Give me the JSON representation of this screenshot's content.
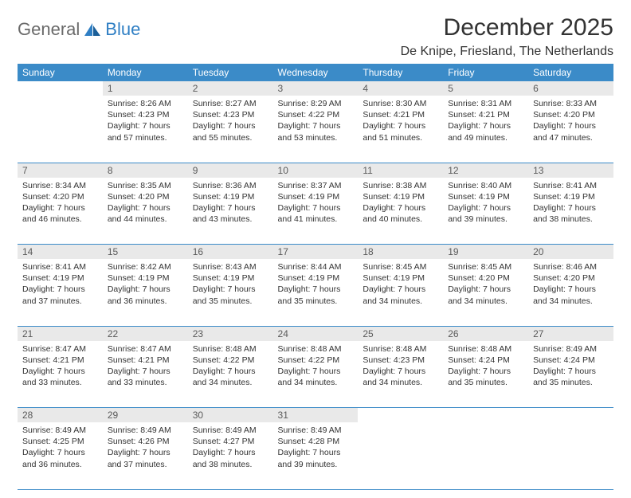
{
  "brand": {
    "part1": "General",
    "part2": "Blue"
  },
  "title": "December 2025",
  "location": "De Knipe, Friesland, The Netherlands",
  "colors": {
    "header_bg": "#3b8bc8",
    "header_text": "#ffffff",
    "daynum_bg": "#e9e9e9",
    "daynum_text": "#5a5a5a",
    "row_border": "#3b8bc8",
    "logo_gray": "#6a6a6a",
    "logo_blue": "#2f7fc4",
    "body_text": "#333333",
    "background": "#ffffff"
  },
  "typography": {
    "title_fontsize": 30,
    "location_fontsize": 16,
    "weekday_fontsize": 12,
    "cell_fontsize": 10.5
  },
  "weekdays": [
    "Sunday",
    "Monday",
    "Tuesday",
    "Wednesday",
    "Thursday",
    "Friday",
    "Saturday"
  ],
  "weeks": [
    {
      "days": [
        {
          "n": "",
          "sunrise": "",
          "sunset": "",
          "daylight": ""
        },
        {
          "n": "1",
          "sunrise": "Sunrise: 8:26 AM",
          "sunset": "Sunset: 4:23 PM",
          "daylight": "Daylight: 7 hours and 57 minutes."
        },
        {
          "n": "2",
          "sunrise": "Sunrise: 8:27 AM",
          "sunset": "Sunset: 4:23 PM",
          "daylight": "Daylight: 7 hours and 55 minutes."
        },
        {
          "n": "3",
          "sunrise": "Sunrise: 8:29 AM",
          "sunset": "Sunset: 4:22 PM",
          "daylight": "Daylight: 7 hours and 53 minutes."
        },
        {
          "n": "4",
          "sunrise": "Sunrise: 8:30 AM",
          "sunset": "Sunset: 4:21 PM",
          "daylight": "Daylight: 7 hours and 51 minutes."
        },
        {
          "n": "5",
          "sunrise": "Sunrise: 8:31 AM",
          "sunset": "Sunset: 4:21 PM",
          "daylight": "Daylight: 7 hours and 49 minutes."
        },
        {
          "n": "6",
          "sunrise": "Sunrise: 8:33 AM",
          "sunset": "Sunset: 4:20 PM",
          "daylight": "Daylight: 7 hours and 47 minutes."
        }
      ]
    },
    {
      "days": [
        {
          "n": "7",
          "sunrise": "Sunrise: 8:34 AM",
          "sunset": "Sunset: 4:20 PM",
          "daylight": "Daylight: 7 hours and 46 minutes."
        },
        {
          "n": "8",
          "sunrise": "Sunrise: 8:35 AM",
          "sunset": "Sunset: 4:20 PM",
          "daylight": "Daylight: 7 hours and 44 minutes."
        },
        {
          "n": "9",
          "sunrise": "Sunrise: 8:36 AM",
          "sunset": "Sunset: 4:19 PM",
          "daylight": "Daylight: 7 hours and 43 minutes."
        },
        {
          "n": "10",
          "sunrise": "Sunrise: 8:37 AM",
          "sunset": "Sunset: 4:19 PM",
          "daylight": "Daylight: 7 hours and 41 minutes."
        },
        {
          "n": "11",
          "sunrise": "Sunrise: 8:38 AM",
          "sunset": "Sunset: 4:19 PM",
          "daylight": "Daylight: 7 hours and 40 minutes."
        },
        {
          "n": "12",
          "sunrise": "Sunrise: 8:40 AM",
          "sunset": "Sunset: 4:19 PM",
          "daylight": "Daylight: 7 hours and 39 minutes."
        },
        {
          "n": "13",
          "sunrise": "Sunrise: 8:41 AM",
          "sunset": "Sunset: 4:19 PM",
          "daylight": "Daylight: 7 hours and 38 minutes."
        }
      ]
    },
    {
      "days": [
        {
          "n": "14",
          "sunrise": "Sunrise: 8:41 AM",
          "sunset": "Sunset: 4:19 PM",
          "daylight": "Daylight: 7 hours and 37 minutes."
        },
        {
          "n": "15",
          "sunrise": "Sunrise: 8:42 AM",
          "sunset": "Sunset: 4:19 PM",
          "daylight": "Daylight: 7 hours and 36 minutes."
        },
        {
          "n": "16",
          "sunrise": "Sunrise: 8:43 AM",
          "sunset": "Sunset: 4:19 PM",
          "daylight": "Daylight: 7 hours and 35 minutes."
        },
        {
          "n": "17",
          "sunrise": "Sunrise: 8:44 AM",
          "sunset": "Sunset: 4:19 PM",
          "daylight": "Daylight: 7 hours and 35 minutes."
        },
        {
          "n": "18",
          "sunrise": "Sunrise: 8:45 AM",
          "sunset": "Sunset: 4:19 PM",
          "daylight": "Daylight: 7 hours and 34 minutes."
        },
        {
          "n": "19",
          "sunrise": "Sunrise: 8:45 AM",
          "sunset": "Sunset: 4:20 PM",
          "daylight": "Daylight: 7 hours and 34 minutes."
        },
        {
          "n": "20",
          "sunrise": "Sunrise: 8:46 AM",
          "sunset": "Sunset: 4:20 PM",
          "daylight": "Daylight: 7 hours and 34 minutes."
        }
      ]
    },
    {
      "days": [
        {
          "n": "21",
          "sunrise": "Sunrise: 8:47 AM",
          "sunset": "Sunset: 4:21 PM",
          "daylight": "Daylight: 7 hours and 33 minutes."
        },
        {
          "n": "22",
          "sunrise": "Sunrise: 8:47 AM",
          "sunset": "Sunset: 4:21 PM",
          "daylight": "Daylight: 7 hours and 33 minutes."
        },
        {
          "n": "23",
          "sunrise": "Sunrise: 8:48 AM",
          "sunset": "Sunset: 4:22 PM",
          "daylight": "Daylight: 7 hours and 34 minutes."
        },
        {
          "n": "24",
          "sunrise": "Sunrise: 8:48 AM",
          "sunset": "Sunset: 4:22 PM",
          "daylight": "Daylight: 7 hours and 34 minutes."
        },
        {
          "n": "25",
          "sunrise": "Sunrise: 8:48 AM",
          "sunset": "Sunset: 4:23 PM",
          "daylight": "Daylight: 7 hours and 34 minutes."
        },
        {
          "n": "26",
          "sunrise": "Sunrise: 8:48 AM",
          "sunset": "Sunset: 4:24 PM",
          "daylight": "Daylight: 7 hours and 35 minutes."
        },
        {
          "n": "27",
          "sunrise": "Sunrise: 8:49 AM",
          "sunset": "Sunset: 4:24 PM",
          "daylight": "Daylight: 7 hours and 35 minutes."
        }
      ]
    },
    {
      "days": [
        {
          "n": "28",
          "sunrise": "Sunrise: 8:49 AM",
          "sunset": "Sunset: 4:25 PM",
          "daylight": "Daylight: 7 hours and 36 minutes."
        },
        {
          "n": "29",
          "sunrise": "Sunrise: 8:49 AM",
          "sunset": "Sunset: 4:26 PM",
          "daylight": "Daylight: 7 hours and 37 minutes."
        },
        {
          "n": "30",
          "sunrise": "Sunrise: 8:49 AM",
          "sunset": "Sunset: 4:27 PM",
          "daylight": "Daylight: 7 hours and 38 minutes."
        },
        {
          "n": "31",
          "sunrise": "Sunrise: 8:49 AM",
          "sunset": "Sunset: 4:28 PM",
          "daylight": "Daylight: 7 hours and 39 minutes."
        },
        {
          "n": "",
          "sunrise": "",
          "sunset": "",
          "daylight": ""
        },
        {
          "n": "",
          "sunrise": "",
          "sunset": "",
          "daylight": ""
        },
        {
          "n": "",
          "sunrise": "",
          "sunset": "",
          "daylight": ""
        }
      ]
    }
  ]
}
